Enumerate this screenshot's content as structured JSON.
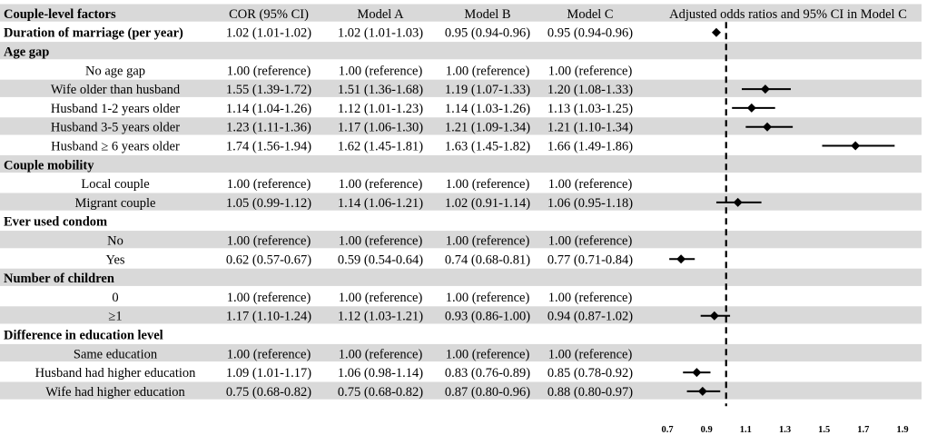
{
  "header": {
    "factor_label": "Couple-level factors",
    "columns": [
      "COR (95% CI)",
      "Model A",
      "Model B",
      "Model C"
    ],
    "plot_title": "Adjusted odds ratios and 95%  CI  in Model C"
  },
  "rows": [
    {
      "kind": "factor",
      "label": "Duration of marriage (per year)",
      "values": [
        "1.02 (1.01-1.02)",
        "1.02 (1.01-1.03)",
        "0.95 (0.94-0.96)",
        "0.95 (0.94-0.96)"
      ]
    },
    {
      "kind": "section",
      "label": "Age gap"
    },
    {
      "kind": "item",
      "label": "No age gap",
      "values": [
        "1.00 (reference)",
        "1.00 (reference)",
        "1.00 (reference)",
        "1.00 (reference)"
      ]
    },
    {
      "kind": "item",
      "label": "Wife older than husband",
      "values": [
        "1.55 (1.39-1.72)",
        "1.51 (1.36-1.68)",
        "1.19 (1.07-1.33)",
        "1.20 (1.08-1.33)"
      ]
    },
    {
      "kind": "item",
      "label": "Husband 1-2 years older",
      "values": [
        "1.14 (1.04-1.26)",
        "1.12 (1.01-1.23)",
        "1.14 (1.03-1.26)",
        "1.13 (1.03-1.25)"
      ]
    },
    {
      "kind": "item",
      "label": "Husband 3-5 years older",
      "values": [
        "1.23 (1.11-1.36)",
        "1.17 (1.06-1.30)",
        "1.21 (1.09-1.34)",
        "1.21 (1.10-1.34)"
      ]
    },
    {
      "kind": "item",
      "label": "Husband ≥ 6 years older",
      "values": [
        "1.74 (1.56-1.94)",
        "1.62 (1.45-1.81)",
        "1.63 (1.45-1.82)",
        "1.66 (1.49-1.86)"
      ]
    },
    {
      "kind": "section",
      "label": "Couple mobility"
    },
    {
      "kind": "item",
      "label": "Local couple",
      "values": [
        "1.00 (reference)",
        "1.00 (reference)",
        "1.00 (reference)",
        "1.00 (reference)"
      ]
    },
    {
      "kind": "item",
      "label": "Migrant couple",
      "values": [
        "1.05 (0.99-1.12)",
        "1.14 (1.06-1.21)",
        "1.02 (0.91-1.14)",
        "1.06 (0.95-1.18)"
      ]
    },
    {
      "kind": "section",
      "label": "Ever used condom"
    },
    {
      "kind": "item",
      "label": "No",
      "values": [
        "1.00 (reference)",
        "1.00 (reference)",
        "1.00 (reference)",
        "1.00 (reference)"
      ]
    },
    {
      "kind": "item",
      "label": "Yes",
      "values": [
        "0.62 (0.57-0.67)",
        "0.59 (0.54-0.64)",
        "0.74 (0.68-0.81)",
        "0.77 (0.71-0.84)"
      ]
    },
    {
      "kind": "section",
      "label": "Number of children"
    },
    {
      "kind": "item",
      "label": "0",
      "values": [
        "1.00 (reference)",
        "1.00 (reference)",
        "1.00 (reference)",
        "1.00 (reference)"
      ]
    },
    {
      "kind": "item",
      "label": "≥1",
      "values": [
        "1.17 (1.10-1.24)",
        "1.12 (1.03-1.21)",
        "0.93 (0.86-1.00)",
        "0.94 (0.87-1.02)"
      ]
    },
    {
      "kind": "section",
      "label": "Difference in education level"
    },
    {
      "kind": "item",
      "label": "Same education",
      "values": [
        "1.00 (reference)",
        "1.00 (reference)",
        "1.00 (reference)",
        "1.00 (reference)"
      ]
    },
    {
      "kind": "item",
      "label": "Husband had higher education",
      "values": [
        "1.09 (1.01-1.17)",
        "1.06 (0.98-1.14)",
        "0.83 (0.76-0.89)",
        "0.85 (0.78-0.92)"
      ]
    },
    {
      "kind": "item",
      "label": "Wife had higher education",
      "values": [
        "0.75 (0.68-0.82)",
        "0.75 (0.68-0.82)",
        "0.87 (0.80-0.96)",
        "0.88 (0.80-0.97)"
      ]
    }
  ],
  "chart_data": {
    "type": "forest",
    "title": "Adjusted odds ratios and 95%  CI  in Model C",
    "xlim": [
      0.7,
      1.9
    ],
    "xticks": [
      "0.7",
      "0.9",
      "1.1",
      "1.3",
      "1.5",
      "1.7",
      "1.9"
    ],
    "reference_line": 1.0,
    "points": [
      {
        "label": "Duration of marriage (per year)",
        "or": 0.95,
        "lo": 0.94,
        "hi": 0.96
      },
      {
        "label": "Wife older than husband",
        "or": 1.2,
        "lo": 1.08,
        "hi": 1.33
      },
      {
        "label": "Husband 1-2 years older",
        "or": 1.13,
        "lo": 1.03,
        "hi": 1.25
      },
      {
        "label": "Husband 3-5 years older",
        "or": 1.21,
        "lo": 1.1,
        "hi": 1.34
      },
      {
        "label": "Husband ≥ 6 years older",
        "or": 1.66,
        "lo": 1.49,
        "hi": 1.86
      },
      {
        "label": "Migrant couple",
        "or": 1.06,
        "lo": 0.95,
        "hi": 1.18
      },
      {
        "label": "Yes",
        "or": 0.77,
        "lo": 0.71,
        "hi": 0.84
      },
      {
        "label": "≥1",
        "or": 0.94,
        "lo": 0.87,
        "hi": 1.02
      },
      {
        "label": "Husband had higher education",
        "or": 0.85,
        "lo": 0.78,
        "hi": 0.92
      },
      {
        "label": "Wife had higher education",
        "or": 0.88,
        "lo": 0.8,
        "hi": 0.97
      }
    ]
  }
}
